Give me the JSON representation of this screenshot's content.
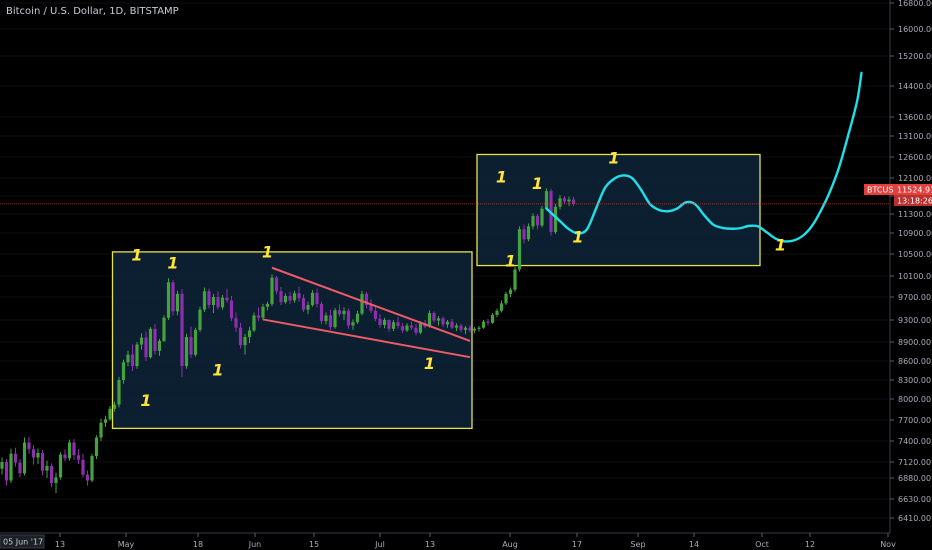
{
  "header": {
    "title": "Bitcoin / U.S. Dollar, 1D, BITSTAMP"
  },
  "colors": {
    "background": "#000000",
    "up_candle": "#44a33e",
    "down_candle": "#8e2fb0",
    "box_stroke": "#e8e24a",
    "box_fill": "#0d2438",
    "trendline": "#ee5b66",
    "projection": "#1ee0e8",
    "price_line": "#c0392b",
    "badge": "#e2403e",
    "labels": "#ffe43a"
  },
  "price_badge": {
    "symbol": "BTCUSD",
    "price": "11524.91",
    "countdown": "13:18:26"
  },
  "cursor_date": "05 Jun '17",
  "chart_data": {
    "type": "candlestick",
    "title": "Bitcoin / U.S. Dollar, 1D, BITSTAMP",
    "y_axis": {
      "position": "right",
      "ticks": [
        6410,
        6630,
        6880,
        7120,
        7400,
        7700,
        8000,
        8300,
        8600,
        8900,
        9300,
        9700,
        10100,
        10500,
        10900,
        11300,
        11700,
        12100,
        12600,
        13100,
        13600,
        14400,
        15200,
        16000,
        16800
      ],
      "tick_labels": [
        "6410.00",
        "6630.00",
        "6880.00",
        "7120.00",
        "7400.00",
        "7700.00",
        "8000.00",
        "8300.00",
        "8600.00",
        "8900.00",
        "9300.00",
        "9700.00",
        "10100.00",
        "10500.00",
        "10900.00",
        "11300.00",
        "11700.00",
        "12100.00",
        "12600.00",
        "13100.00",
        "13600.00",
        "14400.00",
        "15200.00",
        "16000.00",
        "16800.00"
      ]
    },
    "x_axis": {
      "tick_labels": [
        "13",
        "May",
        "18",
        "Jun",
        "15",
        "Jul",
        "13",
        "Aug",
        "17",
        "Sep",
        "14",
        "Oct",
        "12",
        "Nov"
      ]
    },
    "current_price": 11524.91,
    "candles": [
      [
        7020,
        7180,
        6930,
        7120
      ],
      [
        7120,
        7160,
        6790,
        6850
      ],
      [
        6850,
        7300,
        6820,
        7230
      ],
      [
        7230,
        7310,
        7050,
        7110
      ],
      [
        7110,
        7160,
        6890,
        6950
      ],
      [
        6950,
        7450,
        6920,
        7380
      ],
      [
        7380,
        7460,
        7230,
        7290
      ],
      [
        7290,
        7350,
        7080,
        7180
      ],
      [
        7180,
        7300,
        7090,
        7240
      ],
      [
        7240,
        7280,
        6920,
        6990
      ],
      [
        6990,
        7140,
        6880,
        7060
      ],
      [
        7060,
        7100,
        6770,
        6820
      ],
      [
        6820,
        6960,
        6700,
        6890
      ],
      [
        6890,
        7250,
        6860,
        7220
      ],
      [
        7220,
        7290,
        7130,
        7170
      ],
      [
        7170,
        7420,
        7140,
        7380
      ],
      [
        7380,
        7430,
        7150,
        7210
      ],
      [
        7210,
        7290,
        7090,
        7150
      ],
      [
        7150,
        7230,
        6890,
        6930
      ],
      [
        6930,
        6990,
        6790,
        6850
      ],
      [
        6850,
        7230,
        6830,
        7200
      ],
      [
        7200,
        7480,
        7160,
        7450
      ],
      [
        7450,
        7720,
        7400,
        7660
      ],
      [
        7660,
        7760,
        7600,
        7710
      ],
      [
        7710,
        7900,
        7690,
        7860
      ],
      [
        7860,
        7960,
        7820,
        7920
      ],
      [
        7920,
        8350,
        7880,
        8300
      ],
      [
        8300,
        8620,
        8240,
        8580
      ],
      [
        8580,
        8760,
        8520,
        8700
      ],
      [
        8700,
        8860,
        8440,
        8520
      ],
      [
        8520,
        8900,
        8480,
        8860
      ],
      [
        8860,
        9060,
        8780,
        8980
      ],
      [
        8980,
        9090,
        8600,
        8660
      ],
      [
        8660,
        9170,
        8640,
        9140
      ],
      [
        9140,
        9230,
        8700,
        8760
      ],
      [
        8760,
        8960,
        8680,
        8920
      ],
      [
        8920,
        9380,
        8900,
        9340
      ],
      [
        9340,
        10060,
        9300,
        9980
      ],
      [
        9980,
        10020,
        9380,
        9450
      ],
      [
        9450,
        9820,
        9380,
        9760
      ],
      [
        9760,
        9850,
        8350,
        8520
      ],
      [
        8520,
        9050,
        8480,
        8990
      ],
      [
        8990,
        9180,
        8650,
        8700
      ],
      [
        8700,
        9160,
        8670,
        9120
      ],
      [
        9120,
        9530,
        9080,
        9480
      ],
      [
        9480,
        9880,
        9440,
        9810
      ],
      [
        9810,
        9860,
        9500,
        9560
      ],
      [
        9560,
        9760,
        9420,
        9700
      ],
      [
        9700,
        9810,
        9480,
        9520
      ],
      [
        9520,
        9740,
        9480,
        9690
      ],
      [
        9690,
        9860,
        9600,
        9640
      ],
      [
        9640,
        9720,
        9280,
        9330
      ],
      [
        9330,
        9430,
        9080,
        9160
      ],
      [
        9160,
        9250,
        8800,
        8850
      ],
      [
        8850,
        9050,
        8700,
        8990
      ],
      [
        8990,
        9180,
        8880,
        9110
      ],
      [
        9110,
        9430,
        9080,
        9380
      ],
      [
        9380,
        9520,
        9280,
        9340
      ],
      [
        9340,
        9580,
        9300,
        9530
      ],
      [
        9530,
        9620,
        9470,
        9580
      ],
      [
        9580,
        10130,
        9540,
        10070
      ],
      [
        10070,
        10100,
        9750,
        9810
      ],
      [
        9810,
        9890,
        9560,
        9610
      ],
      [
        9610,
        9770,
        9580,
        9720
      ],
      [
        9720,
        9800,
        9580,
        9640
      ],
      [
        9640,
        9820,
        9600,
        9770
      ],
      [
        9770,
        9900,
        9620,
        9680
      ],
      [
        9680,
        9750,
        9440,
        9480
      ],
      [
        9480,
        9620,
        9400,
        9560
      ],
      [
        9560,
        9830,
        9530,
        9780
      ],
      [
        9780,
        9860,
        9520,
        9580
      ],
      [
        9580,
        9620,
        9220,
        9280
      ],
      [
        9280,
        9430,
        9220,
        9380
      ],
      [
        9380,
        9480,
        9120,
        9170
      ],
      [
        9170,
        9510,
        9140,
        9470
      ],
      [
        9470,
        9570,
        9360,
        9400
      ],
      [
        9400,
        9520,
        9300,
        9460
      ],
      [
        9460,
        9500,
        9140,
        9200
      ],
      [
        9200,
        9310,
        9120,
        9260
      ],
      [
        9260,
        9460,
        9230,
        9410
      ],
      [
        9410,
        9820,
        9380,
        9760
      ],
      [
        9760,
        9800,
        9500,
        9560
      ],
      [
        9560,
        9660,
        9420,
        9460
      ],
      [
        9460,
        9560,
        9280,
        9320
      ],
      [
        9320,
        9400,
        9160,
        9210
      ],
      [
        9210,
        9340,
        9150,
        9300
      ],
      [
        9300,
        9310,
        9080,
        9140
      ],
      [
        9140,
        9300,
        9100,
        9260
      ],
      [
        9260,
        9350,
        9140,
        9190
      ],
      [
        9190,
        9240,
        9060,
        9110
      ],
      [
        9110,
        9240,
        9080,
        9200
      ],
      [
        9200,
        9270,
        9120,
        9160
      ],
      [
        9160,
        9230,
        9020,
        9070
      ],
      [
        9070,
        9280,
        9040,
        9240
      ],
      [
        9240,
        9300,
        9150,
        9180
      ],
      [
        9180,
        9470,
        9160,
        9420
      ],
      [
        9420,
        9450,
        9250,
        9290
      ],
      [
        9290,
        9370,
        9200,
        9330
      ],
      [
        9330,
        9360,
        9170,
        9220
      ],
      [
        9220,
        9300,
        9160,
        9270
      ],
      [
        9270,
        9320,
        9130,
        9160
      ],
      [
        9160,
        9240,
        9100,
        9200
      ],
      [
        9200,
        9230,
        9080,
        9120
      ],
      [
        9120,
        9190,
        9040,
        9160
      ],
      [
        9160,
        9200,
        9070,
        9110
      ],
      [
        9110,
        9170,
        9060,
        9140
      ],
      [
        9140,
        9190,
        9090,
        9160
      ],
      [
        9160,
        9300,
        9140,
        9270
      ],
      [
        9270,
        9320,
        9200,
        9250
      ],
      [
        9250,
        9420,
        9230,
        9390
      ],
      [
        9390,
        9500,
        9350,
        9460
      ],
      [
        9460,
        9640,
        9430,
        9590
      ],
      [
        9590,
        9800,
        9560,
        9760
      ],
      [
        9760,
        9880,
        9700,
        9840
      ],
      [
        9840,
        10280,
        9800,
        10220
      ],
      [
        10220,
        11040,
        10180,
        10980
      ],
      [
        10980,
        11080,
        10700,
        10780
      ],
      [
        10780,
        11100,
        10740,
        11040
      ],
      [
        11040,
        11320,
        10980,
        11260
      ],
      [
        11260,
        11300,
        10980,
        11060
      ],
      [
        11060,
        11480,
        11020,
        11420
      ],
      [
        11420,
        11870,
        11380,
        11810
      ],
      [
        11810,
        11860,
        10850,
        10920
      ],
      [
        10920,
        11520,
        10880,
        11460
      ],
      [
        11460,
        11720,
        11400,
        11650
      ],
      [
        11650,
        11700,
        11530,
        11580
      ],
      [
        11580,
        11690,
        11480,
        11620
      ],
      [
        11620,
        11680,
        11480,
        11530
      ]
    ],
    "boxes": [
      {
        "from_index": 25,
        "to_index": 104,
        "from_price": 7580,
        "to_price": 10540
      },
      {
        "from_index": 106,
        "to_index": 168,
        "from_price": 10290,
        "to_price": 12660
      }
    ],
    "trendlines": [
      {
        "from_index": 60,
        "from_price": 10250,
        "to_index": 104,
        "to_price": 8920
      },
      {
        "from_index": 58,
        "from_price": 9310,
        "to_index": 104,
        "to_price": 8660
      }
    ],
    "projection": [
      [
        121,
        11420
      ],
      [
        124,
        11150
      ],
      [
        126,
        10980
      ],
      [
        128,
        10890
      ],
      [
        130,
        10980
      ],
      [
        132,
        11420
      ],
      [
        134,
        11880
      ],
      [
        136,
        12080
      ],
      [
        138,
        12160
      ],
      [
        140,
        12100
      ],
      [
        142,
        11840
      ],
      [
        144,
        11520
      ],
      [
        146,
        11390
      ],
      [
        148,
        11360
      ],
      [
        150,
        11420
      ],
      [
        152,
        11560
      ],
      [
        154,
        11520
      ],
      [
        156,
        11280
      ],
      [
        158,
        11080
      ],
      [
        160,
        11010
      ],
      [
        162,
        10990
      ],
      [
        164,
        11000
      ],
      [
        166,
        11050
      ],
      [
        168,
        11040
      ],
      [
        170,
        10910
      ],
      [
        172,
        10790
      ],
      [
        174,
        10740
      ],
      [
        176,
        10760
      ],
      [
        178,
        10850
      ],
      [
        180,
        11050
      ],
      [
        182,
        11380
      ],
      [
        184,
        11800
      ],
      [
        186,
        12350
      ],
      [
        188,
        13100
      ],
      [
        190,
        14000
      ],
      [
        191,
        14750
      ]
    ],
    "annotations": [
      {
        "text": "1",
        "index": 30,
        "price": 10380
      },
      {
        "text": "1",
        "index": 38,
        "price": 10240
      },
      {
        "text": "1",
        "index": 32,
        "price": 7900
      },
      {
        "text": "1",
        "index": 48,
        "price": 8370
      },
      {
        "text": "1",
        "index": 59,
        "price": 10440
      },
      {
        "text": "1",
        "index": 95,
        "price": 8470
      },
      {
        "text": "1",
        "index": 111,
        "price": 12000
      },
      {
        "text": "1",
        "index": 119,
        "price": 11860
      },
      {
        "text": "1",
        "index": 113,
        "price": 10270
      },
      {
        "text": "1",
        "index": 128,
        "price": 10720
      },
      {
        "text": "1",
        "index": 136,
        "price": 12440
      },
      {
        "text": "1",
        "index": 173,
        "price": 10570
      }
    ]
  }
}
